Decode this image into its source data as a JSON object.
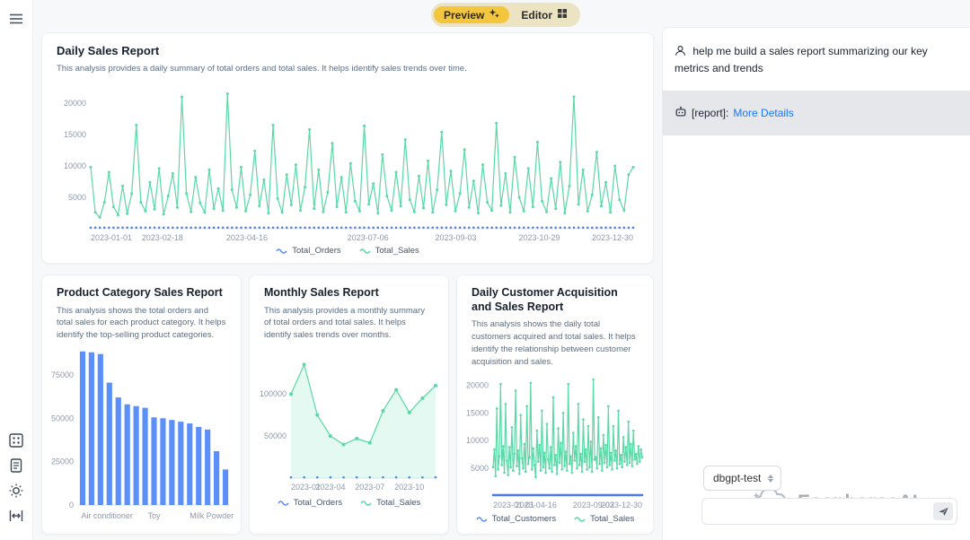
{
  "colors": {
    "green": "#5AD8A6",
    "blue": "#5B8FF9",
    "accent_yellow": "#F3C63D",
    "link": "#1677FF"
  },
  "toggle": {
    "preview_label": "Preview",
    "editor_label": "Editor"
  },
  "cards": {
    "daily": {
      "title": "Daily Sales Report",
      "desc": "This analysis provides a daily summary of total orders and total sales. It helps identify sales trends over time.",
      "legend": [
        {
          "label": "Total_Orders"
        },
        {
          "label": "Total_Sales"
        }
      ]
    },
    "category": {
      "title": "Product Category Sales Report",
      "desc": "This analysis shows the total orders and total sales for each product category. It helps identify the top-selling product categories."
    },
    "monthly": {
      "title": "Monthly Sales Report",
      "desc": "This analysis provides a monthly summary of total orders and total sales. It helps identify sales trends over months.",
      "legend": [
        {
          "label": "Total_Orders"
        },
        {
          "label": "Total_Sales"
        }
      ]
    },
    "acquisition": {
      "title": "Daily Customer Acquisition and Sales Report",
      "desc": "This analysis shows the daily total customers acquired and total sales. It helps identify the relationship between customer acquisition and sales.",
      "legend": [
        {
          "label": "Total_Customers"
        },
        {
          "label": "Total_Sales"
        }
      ]
    }
  },
  "chat": {
    "user_message": "help me build a sales report summarizing our key metrics and trends",
    "report_prefix": "[report]:",
    "report_link": "More Details",
    "model": "dbgpt-test",
    "watermark": "EosphorosAI",
    "input_placeholder": ""
  },
  "chart_data": [
    {
      "id": "daily_sales",
      "type": "line",
      "title": "Daily Sales Report",
      "ylim": [
        0,
        22000
      ],
      "yticks": [
        5000,
        10000,
        15000,
        20000
      ],
      "pad": [
        46,
        12,
        12,
        16
      ],
      "xticks": [
        {
          "f": 0,
          "label": "2023-01-01"
        },
        {
          "f": 0.132,
          "label": "2023-02-18"
        },
        {
          "f": 0.288,
          "label": "2023-04-16"
        },
        {
          "f": 0.511,
          "label": "2023-07-06"
        },
        {
          "f": 0.673,
          "label": "2023-09-03"
        },
        {
          "f": 0.827,
          "label": "2023-10-29"
        },
        {
          "f": 1,
          "label": "2023-12-30"
        }
      ],
      "series": [
        {
          "name": "Total_Orders",
          "color": "#4c7af1",
          "type": "dots",
          "values": 180
        },
        {
          "name": "Total_Sales",
          "color": "#5AD8A6",
          "type": "line",
          "markers": true,
          "mr": 1.5,
          "values": [
            9800,
            2600,
            1800,
            4200,
            9000,
            3500,
            2200,
            6800,
            2400,
            5600,
            16500,
            4200,
            2800,
            7400,
            3100,
            9600,
            2300,
            5200,
            8800,
            3400,
            21000,
            5600,
            2700,
            8200,
            4100,
            2600,
            9400,
            3200,
            6400,
            2900,
            21500,
            6200,
            3400,
            9800,
            2800,
            5400,
            12400,
            3600,
            7800,
            2500,
            16500,
            4800,
            2600,
            8600,
            3800,
            10200,
            2900,
            6600,
            15800,
            3200,
            9400,
            2700,
            5800,
            13600,
            3500,
            8200,
            2600,
            10400,
            4400,
            2800,
            16400,
            3900,
            7200,
            2500,
            11800,
            5200,
            2900,
            9000,
            3600,
            14200,
            4600,
            2700,
            8400,
            3300,
            10800,
            2600,
            6200,
            15400,
            3800,
            9200,
            2800,
            5600,
            12600,
            3400,
            7600,
            2500,
            10200,
            4200,
            2900,
            16800,
            3700,
            8800,
            2600,
            11400,
            5000,
            2800,
            9600,
            3500,
            13800,
            4400,
            2700,
            8000,
            3200,
            10600,
            2500,
            6800,
            21000,
            3900,
            9400,
            2800,
            5400,
            12200,
            3600,
            7400,
            2600,
            10000,
            4600,
            2900,
            8600,
            9800
          ]
        }
      ]
    },
    {
      "id": "category_sales",
      "type": "bar",
      "title": "Product Category Sales Report",
      "color": "#5B8FF9",
      "ylim": [
        0,
        92000
      ],
      "yticks": [
        0,
        25000,
        50000,
        75000
      ],
      "pad": [
        34,
        8,
        8,
        18
      ],
      "xticks": [
        {
          "f": 0.02,
          "label": "Air conditioner"
        },
        {
          "f": 0.5,
          "label": "Toy"
        },
        {
          "f": 0.88,
          "label": "Milk Powder"
        }
      ],
      "values": [
        88500,
        88000,
        87000,
        70500,
        62000,
        58000,
        57000,
        56000,
        50500,
        50000,
        49000,
        48000,
        47000,
        45000,
        43500,
        31000,
        20500
      ]
    },
    {
      "id": "monthly_sales",
      "type": "line",
      "title": "Monthly Sales Report",
      "ylim": [
        0,
        145000
      ],
      "yticks": [
        50000,
        100000
      ],
      "pad": [
        40,
        10,
        10,
        16
      ],
      "xticks": [
        {
          "f": 0,
          "label": "2023-01"
        },
        {
          "f": 0.273,
          "label": "2023-04"
        },
        {
          "f": 0.545,
          "label": "2023-07"
        },
        {
          "f": 0.818,
          "label": "2023-10"
        }
      ],
      "series": [
        {
          "name": "Total_Orders",
          "color": "#4c7af1",
          "type": "dots",
          "values": 900
        },
        {
          "name": "Total_Sales",
          "color": "#5AD8A6",
          "type": "line",
          "markers": true,
          "mr": 2,
          "area": true,
          "values": [
            100000,
            135000,
            75000,
            50000,
            40000,
            47000,
            42000,
            80000,
            105000,
            78000,
            95000,
            110000
          ]
        }
      ]
    },
    {
      "id": "daily_customers",
      "type": "line",
      "title": "Daily Customer Acquisition and Sales Report",
      "ylim": [
        0,
        22000
      ],
      "yticks": [
        5000,
        10000,
        15000,
        20000
      ],
      "pad": [
        34,
        8,
        8,
        16
      ],
      "xticks": [
        {
          "f": 0,
          "label": "2023-01-01"
        },
        {
          "f": 0.288,
          "label": "2023-04-16"
        },
        {
          "f": 0.673,
          "label": "2023-09-03"
        },
        {
          "f": 1,
          "label": "2023-12-30"
        }
      ],
      "series": [
        {
          "name": "Total_Customers",
          "color": "#4c7af1",
          "type": "dots",
          "values": 180
        },
        {
          "name": "Total_Sales",
          "color": "#5AD8A6",
          "type": "line",
          "markers": true,
          "mr": 1.3,
          "values": [
            5200,
            8400,
            3600,
            15800,
            4800,
            7200,
            20200,
            5600,
            9000,
            4200,
            16600,
            6400,
            3800,
            8800,
            5200,
            12400,
            4600,
            7600,
            19000,
            5400,
            8200,
            4000,
            14600,
            6800,
            5000,
            9400,
            4400,
            16200,
            5800,
            7000,
            20400,
            4800,
            8600,
            5600,
            3400,
            11800,
            6200,
            9200,
            4600,
            15400,
            5200,
            7800,
            4200,
            13000,
            6600,
            5000,
            8800,
            4400,
            17800,
            5600,
            7400,
            4000,
            12200,
            6000,
            9600,
            4800,
            15000,
            5400,
            8000,
            4600,
            20200,
            5800,
            7200,
            4200,
            11400,
            6400,
            9000,
            5000,
            16600,
            5600,
            7600,
            4400,
            13800,
            6200,
            8400,
            4800,
            12600,
            5200,
            9800,
            4400,
            21000,
            6600,
            7000,
            5000,
            14200,
            5800,
            8600,
            4600,
            11000,
            6000,
            9200,
            5200,
            16200,
            5600,
            7800,
            4800,
            12600,
            6400,
            8200,
            5000,
            15400,
            5800,
            7400,
            5200,
            10600,
            6200,
            8800,
            5600,
            13400,
            6000,
            9400,
            5400,
            11800,
            6600,
            7600,
            5800,
            9000,
            6200,
            8400,
            7000
          ]
        }
      ]
    }
  ]
}
